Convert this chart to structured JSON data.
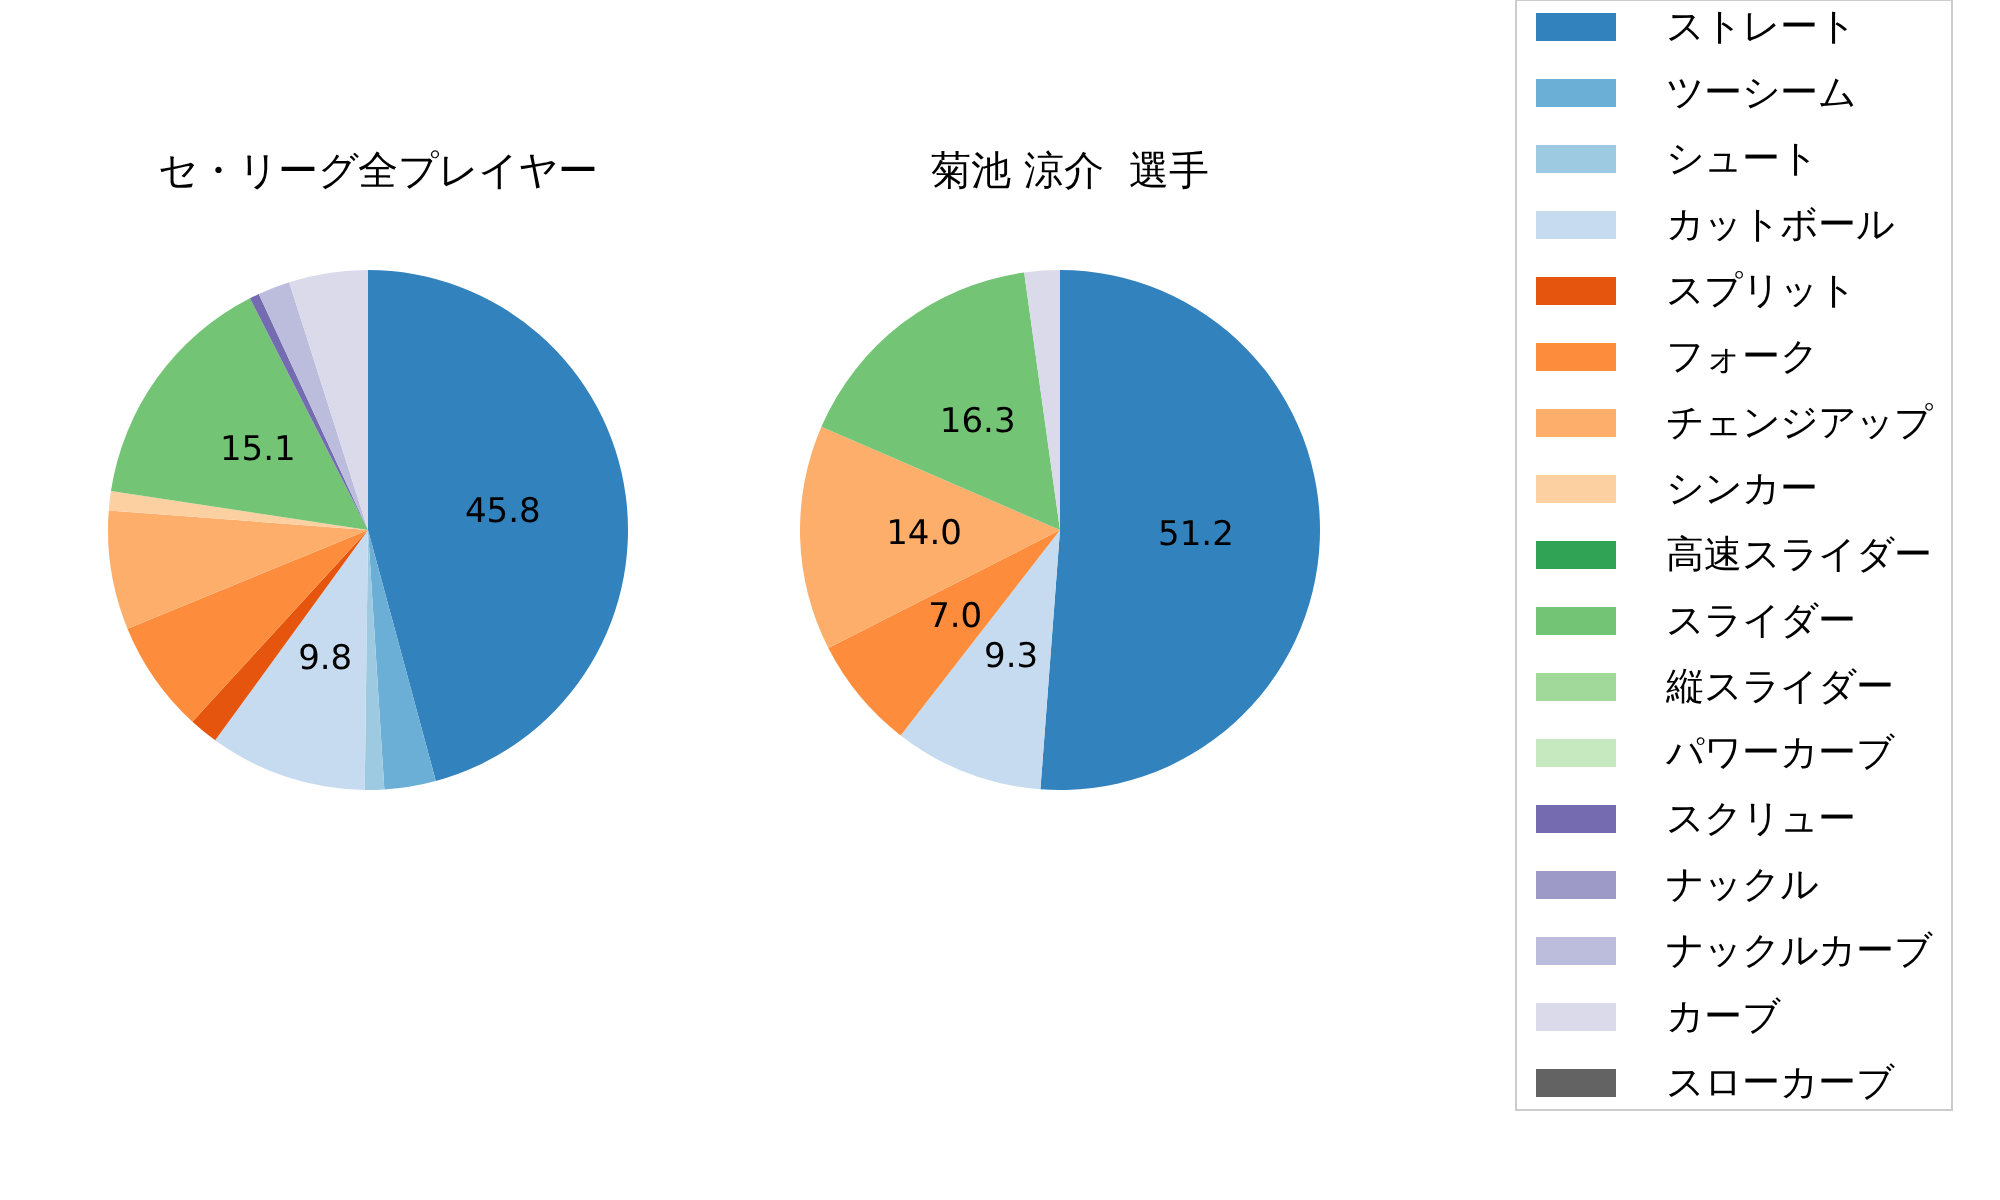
{
  "chart_data": {
    "type": "pie",
    "categories": [
      "ストレート",
      "ツーシーム",
      "シュート",
      "カットボール",
      "スプリット",
      "フォーク",
      "チェンジアップ",
      "シンカー",
      "高速スライダー",
      "スライダー",
      "縦スライダー",
      "パワーカーブ",
      "スクリュー",
      "ナックル",
      "ナックルカーブ",
      "カーブ",
      "スローカーブ"
    ],
    "colors": [
      "#3182bd",
      "#6baed6",
      "#9ecae1",
      "#c6dbef",
      "#e6550d",
      "#fd8d3c",
      "#fdae6b",
      "#fdd0a2",
      "#31a354",
      "#74c476",
      "#a1d99b",
      "#c7e9c0",
      "#756bb1",
      "#9e9ac8",
      "#bcbddc",
      "#dadaeb",
      "#636363"
    ],
    "series": [
      {
        "name": "セ・リーグ全プレイヤー",
        "values": [
          45.8,
          3.2,
          1.2,
          9.8,
          1.8,
          7.0,
          7.4,
          1.2,
          0,
          15.1,
          0,
          0,
          0.6,
          0,
          2.0,
          4.9,
          0
        ],
        "value_labels": [
          "45.8",
          null,
          null,
          "9.8",
          null,
          null,
          null,
          null,
          null,
          "15.1",
          null,
          null,
          null,
          null,
          null,
          null,
          null
        ]
      },
      {
        "name": "菊池 涼介  選手",
        "values": [
          51.2,
          0,
          0,
          9.3,
          0,
          7.0,
          14.0,
          0,
          0,
          16.3,
          0,
          0,
          0,
          0,
          0,
          2.2,
          0
        ],
        "value_labels": [
          "51.2",
          null,
          null,
          "9.3",
          null,
          "7.0",
          "14.0",
          null,
          null,
          "16.3",
          null,
          null,
          null,
          null,
          null,
          null,
          null
        ]
      }
    ],
    "legend": "right"
  }
}
